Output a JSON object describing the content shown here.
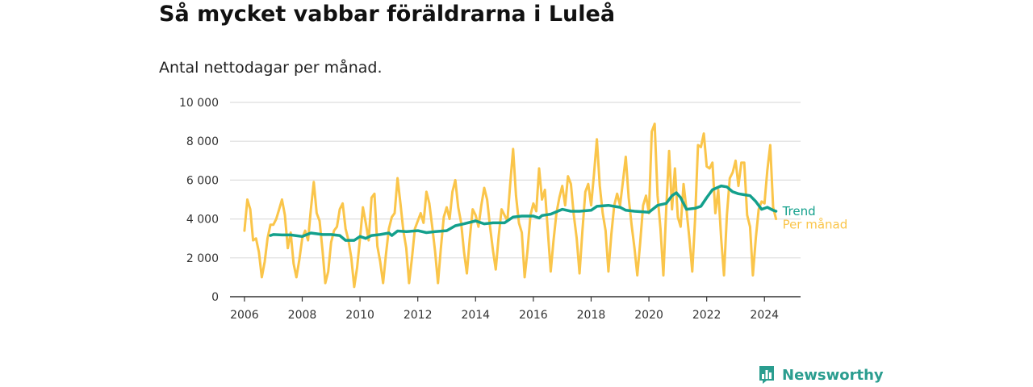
{
  "header": {
    "title": "Så mycket vabbar föräldrarna i Luleå",
    "subtitle": "Antal nettodagar per månad."
  },
  "logo": {
    "text": "Newsworthy",
    "icon": "newsworthy-logo-icon"
  },
  "colors": {
    "monthly": "#fac54a",
    "trend": "#13a08c",
    "axis": "#333333",
    "grid": "#dddddd"
  },
  "chart_data": {
    "type": "line",
    "title": "Så mycket vabbar föräldrarna i Luleå",
    "subtitle": "Antal nettodagar per månad.",
    "xlabel": "",
    "ylabel": "",
    "xlim": [
      2005.5,
      2025.25
    ],
    "ylim": [
      0,
      10000
    ],
    "grid": true,
    "x_ticks": [
      2006,
      2008,
      2010,
      2012,
      2014,
      2016,
      2018,
      2020,
      2022,
      2024
    ],
    "x_tick_labels": [
      "2006",
      "2008",
      "2010",
      "2012",
      "2014",
      "2016",
      "2018",
      "2020",
      "2022",
      "2024"
    ],
    "y_ticks": [
      0,
      2000,
      4000,
      6000,
      8000,
      10000
    ],
    "y_tick_labels": [
      "0",
      "2 000",
      "4 000",
      "6 000",
      "8 000",
      "10 000"
    ],
    "legend": "inline labels at line ends",
    "series": [
      {
        "name": "Per månad",
        "color": "#fac54a",
        "points": [
          [
            2006.0,
            3400
          ],
          [
            2006.1,
            5000
          ],
          [
            2006.2,
            4500
          ],
          [
            2006.3,
            2900
          ],
          [
            2006.4,
            3000
          ],
          [
            2006.5,
            2300
          ],
          [
            2006.6,
            1000
          ],
          [
            2006.7,
            1800
          ],
          [
            2006.8,
            3000
          ],
          [
            2006.9,
            3700
          ],
          [
            2007.0,
            3700
          ],
          [
            2007.1,
            4000
          ],
          [
            2007.2,
            4500
          ],
          [
            2007.3,
            5000
          ],
          [
            2007.4,
            4200
          ],
          [
            2007.5,
            2500
          ],
          [
            2007.6,
            3300
          ],
          [
            2007.7,
            1700
          ],
          [
            2007.8,
            1000
          ],
          [
            2007.9,
            1900
          ],
          [
            2008.0,
            3000
          ],
          [
            2008.1,
            3400
          ],
          [
            2008.2,
            2900
          ],
          [
            2008.3,
            4500
          ],
          [
            2008.4,
            5900
          ],
          [
            2008.5,
            4300
          ],
          [
            2008.6,
            3900
          ],
          [
            2008.7,
            2400
          ],
          [
            2008.8,
            700
          ],
          [
            2008.9,
            1300
          ],
          [
            2009.0,
            2800
          ],
          [
            2009.1,
            3400
          ],
          [
            2009.2,
            3600
          ],
          [
            2009.3,
            4500
          ],
          [
            2009.4,
            4800
          ],
          [
            2009.5,
            3500
          ],
          [
            2009.6,
            2900
          ],
          [
            2009.7,
            2000
          ],
          [
            2009.8,
            500
          ],
          [
            2009.9,
            1500
          ],
          [
            2010.0,
            3000
          ],
          [
            2010.1,
            4600
          ],
          [
            2010.2,
            3800
          ],
          [
            2010.3,
            2900
          ],
          [
            2010.4,
            5100
          ],
          [
            2010.5,
            5300
          ],
          [
            2010.6,
            2600
          ],
          [
            2010.7,
            1800
          ],
          [
            2010.8,
            700
          ],
          [
            2010.9,
            2200
          ],
          [
            2011.0,
            3500
          ],
          [
            2011.1,
            4100
          ],
          [
            2011.2,
            4300
          ],
          [
            2011.3,
            6100
          ],
          [
            2011.4,
            4800
          ],
          [
            2011.5,
            3400
          ],
          [
            2011.6,
            2500
          ],
          [
            2011.7,
            700
          ],
          [
            2011.8,
            2000
          ],
          [
            2011.9,
            3500
          ],
          [
            2012.0,
            3900
          ],
          [
            2012.1,
            4300
          ],
          [
            2012.2,
            3800
          ],
          [
            2012.3,
            5400
          ],
          [
            2012.4,
            4800
          ],
          [
            2012.5,
            3600
          ],
          [
            2012.6,
            2300
          ],
          [
            2012.7,
            700
          ],
          [
            2012.8,
            2500
          ],
          [
            2012.9,
            4100
          ],
          [
            2013.0,
            4600
          ],
          [
            2013.1,
            4000
          ],
          [
            2013.2,
            5400
          ],
          [
            2013.3,
            6000
          ],
          [
            2013.4,
            4600
          ],
          [
            2013.5,
            3800
          ],
          [
            2013.6,
            2300
          ],
          [
            2013.7,
            1200
          ],
          [
            2013.8,
            3000
          ],
          [
            2013.9,
            4500
          ],
          [
            2014.0,
            4200
          ],
          [
            2014.1,
            3600
          ],
          [
            2014.2,
            4700
          ],
          [
            2014.3,
            5600
          ],
          [
            2014.4,
            5000
          ],
          [
            2014.5,
            3600
          ],
          [
            2014.6,
            2400
          ],
          [
            2014.7,
            1400
          ],
          [
            2014.8,
            3100
          ],
          [
            2014.9,
            4500
          ],
          [
            2015.0,
            4200
          ],
          [
            2015.1,
            3900
          ],
          [
            2015.2,
            5800
          ],
          [
            2015.3,
            7600
          ],
          [
            2015.4,
            5200
          ],
          [
            2015.5,
            3800
          ],
          [
            2015.6,
            3300
          ],
          [
            2015.7,
            1000
          ],
          [
            2015.8,
            2400
          ],
          [
            2015.9,
            4200
          ],
          [
            2016.0,
            4800
          ],
          [
            2016.1,
            4400
          ],
          [
            2016.2,
            6600
          ],
          [
            2016.3,
            5000
          ],
          [
            2016.4,
            5500
          ],
          [
            2016.5,
            3400
          ],
          [
            2016.6,
            1300
          ],
          [
            2016.7,
            2900
          ],
          [
            2016.8,
            4300
          ],
          [
            2016.9,
            5100
          ],
          [
            2017.0,
            5700
          ],
          [
            2017.1,
            4700
          ],
          [
            2017.2,
            6200
          ],
          [
            2017.3,
            5800
          ],
          [
            2017.4,
            4200
          ],
          [
            2017.5,
            3000
          ],
          [
            2017.6,
            1200
          ],
          [
            2017.7,
            3400
          ],
          [
            2017.8,
            5400
          ],
          [
            2017.9,
            5800
          ],
          [
            2018.0,
            4700
          ],
          [
            2018.1,
            6300
          ],
          [
            2018.2,
            8100
          ],
          [
            2018.3,
            5700
          ],
          [
            2018.4,
            4300
          ],
          [
            2018.5,
            3400
          ],
          [
            2018.6,
            1300
          ],
          [
            2018.7,
            3200
          ],
          [
            2018.8,
            4700
          ],
          [
            2018.9,
            5300
          ],
          [
            2019.0,
            4700
          ],
          [
            2019.1,
            5900
          ],
          [
            2019.2,
            7200
          ],
          [
            2019.3,
            5100
          ],
          [
            2019.4,
            3700
          ],
          [
            2019.5,
            2500
          ],
          [
            2019.6,
            1100
          ],
          [
            2019.7,
            2800
          ],
          [
            2019.8,
            4700
          ],
          [
            2019.9,
            5200
          ],
          [
            2020.0,
            4300
          ],
          [
            2020.1,
            8500
          ],
          [
            2020.2,
            8900
          ],
          [
            2020.3,
            5200
          ],
          [
            2020.4,
            3500
          ],
          [
            2020.5,
            1100
          ],
          [
            2020.6,
            4500
          ],
          [
            2020.7,
            7500
          ],
          [
            2020.8,
            4500
          ],
          [
            2020.9,
            6600
          ],
          [
            2021.0,
            4100
          ],
          [
            2021.1,
            3600
          ],
          [
            2021.2,
            5800
          ],
          [
            2021.3,
            4500
          ],
          [
            2021.4,
            3000
          ],
          [
            2021.5,
            1300
          ],
          [
            2021.6,
            4000
          ],
          [
            2021.7,
            7800
          ],
          [
            2021.8,
            7700
          ],
          [
            2021.9,
            8400
          ],
          [
            2022.0,
            6700
          ],
          [
            2022.1,
            6600
          ],
          [
            2022.2,
            6900
          ],
          [
            2022.3,
            4300
          ],
          [
            2022.4,
            5500
          ],
          [
            2022.5,
            3000
          ],
          [
            2022.6,
            1100
          ],
          [
            2022.7,
            4200
          ],
          [
            2022.8,
            6100
          ],
          [
            2022.9,
            6400
          ],
          [
            2023.0,
            7000
          ],
          [
            2023.1,
            5700
          ],
          [
            2023.2,
            6900
          ],
          [
            2023.3,
            6900
          ],
          [
            2023.4,
            4200
          ],
          [
            2023.5,
            3600
          ],
          [
            2023.6,
            1100
          ],
          [
            2023.7,
            3000
          ],
          [
            2023.8,
            4500
          ],
          [
            2023.9,
            4900
          ],
          [
            2024.0,
            4800
          ],
          [
            2024.1,
            6500
          ],
          [
            2024.2,
            7800
          ],
          [
            2024.3,
            4600
          ],
          [
            2024.4,
            4000
          ]
        ]
      },
      {
        "name": "Trend",
        "color": "#13a08c",
        "points": [
          [
            2006.9,
            3150
          ],
          [
            2007.0,
            3200
          ],
          [
            2007.3,
            3180
          ],
          [
            2007.6,
            3180
          ],
          [
            2008.0,
            3100
          ],
          [
            2008.3,
            3280
          ],
          [
            2008.7,
            3200
          ],
          [
            2009.0,
            3200
          ],
          [
            2009.3,
            3150
          ],
          [
            2009.5,
            2900
          ],
          [
            2009.8,
            2900
          ],
          [
            2010.0,
            3100
          ],
          [
            2010.2,
            3000
          ],
          [
            2010.4,
            3150
          ],
          [
            2010.7,
            3200
          ],
          [
            2011.0,
            3280
          ],
          [
            2011.1,
            3150
          ],
          [
            2011.3,
            3380
          ],
          [
            2011.6,
            3350
          ],
          [
            2012.0,
            3400
          ],
          [
            2012.3,
            3300
          ],
          [
            2012.6,
            3350
          ],
          [
            2013.0,
            3400
          ],
          [
            2013.3,
            3650
          ],
          [
            2013.6,
            3750
          ],
          [
            2014.0,
            3900
          ],
          [
            2014.3,
            3750
          ],
          [
            2014.6,
            3800
          ],
          [
            2015.0,
            3800
          ],
          [
            2015.3,
            4100
          ],
          [
            2015.6,
            4150
          ],
          [
            2016.0,
            4150
          ],
          [
            2016.2,
            4050
          ],
          [
            2016.3,
            4180
          ],
          [
            2016.6,
            4250
          ],
          [
            2017.0,
            4500
          ],
          [
            2017.3,
            4400
          ],
          [
            2017.6,
            4400
          ],
          [
            2018.0,
            4450
          ],
          [
            2018.2,
            4650
          ],
          [
            2018.6,
            4700
          ],
          [
            2019.0,
            4600
          ],
          [
            2019.2,
            4450
          ],
          [
            2019.5,
            4400
          ],
          [
            2020.0,
            4350
          ],
          [
            2020.3,
            4700
          ],
          [
            2020.6,
            4800
          ],
          [
            2020.8,
            5200
          ],
          [
            2020.95,
            5350
          ],
          [
            2021.1,
            5100
          ],
          [
            2021.3,
            4500
          ],
          [
            2021.6,
            4550
          ],
          [
            2021.8,
            4650
          ],
          [
            2022.0,
            5100
          ],
          [
            2022.2,
            5500
          ],
          [
            2022.5,
            5700
          ],
          [
            2022.7,
            5650
          ],
          [
            2022.9,
            5400
          ],
          [
            2023.1,
            5300
          ],
          [
            2023.3,
            5250
          ],
          [
            2023.5,
            5200
          ],
          [
            2023.7,
            4900
          ],
          [
            2023.9,
            4500
          ],
          [
            2024.1,
            4600
          ],
          [
            2024.3,
            4450
          ],
          [
            2024.4,
            4400
          ]
        ]
      }
    ]
  }
}
